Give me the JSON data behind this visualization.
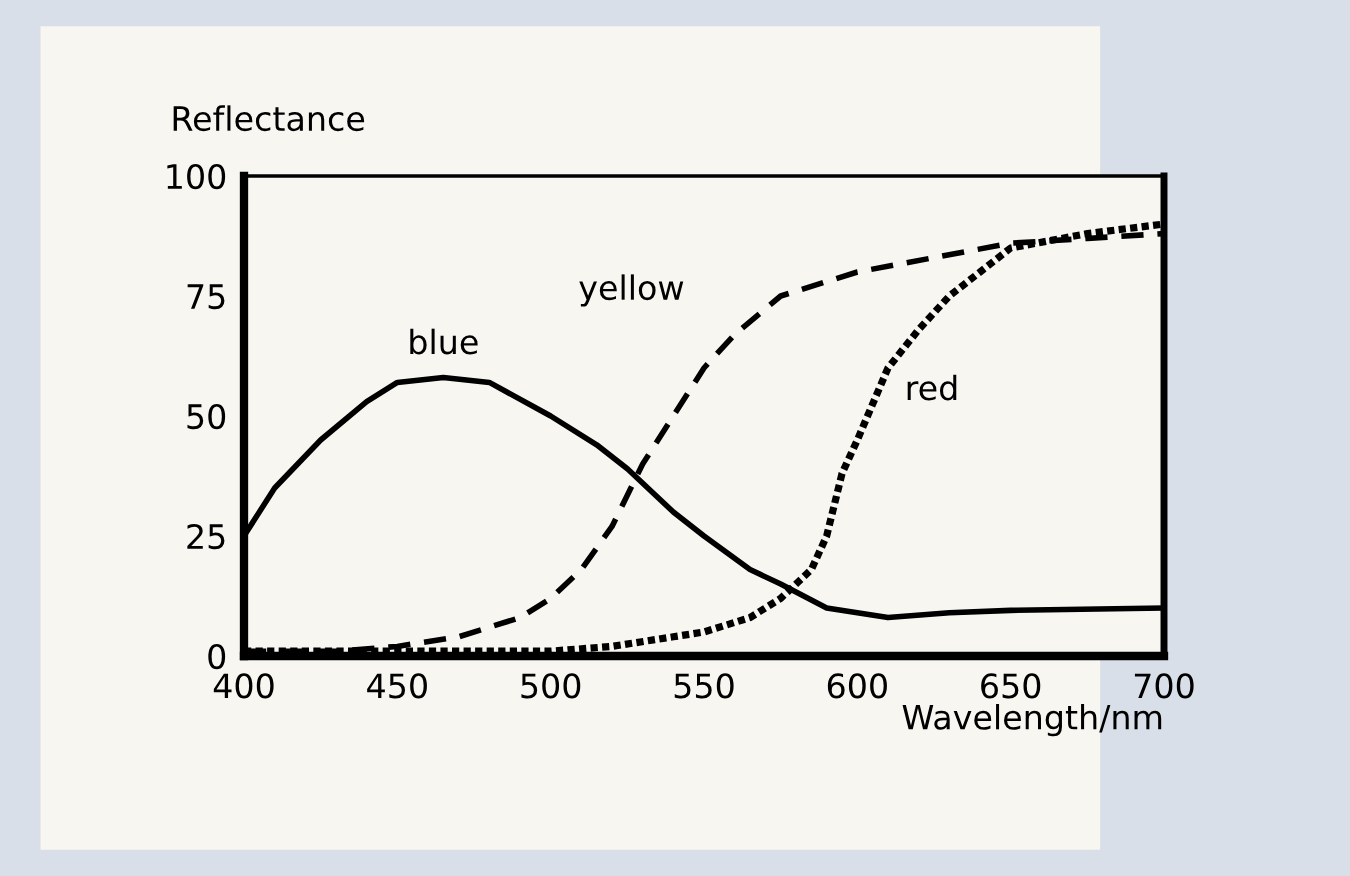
{
  "chart_data": {
    "type": "line",
    "ylabel": "Reflectance",
    "xlabel": "Wavelength/nm",
    "xlim": [
      400,
      700
    ],
    "ylim": [
      0,
      100
    ],
    "xticks": [
      400,
      450,
      500,
      550,
      600,
      650,
      700
    ],
    "yticks": [
      0,
      25,
      50,
      75,
      100
    ],
    "grid": false,
    "legend": false,
    "marker": "none",
    "series": [
      {
        "name": "blue",
        "color": "#000000",
        "line_style": "solid",
        "x": [
          400,
          410,
          425,
          440,
          450,
          465,
          480,
          500,
          515,
          525,
          540,
          550,
          565,
          575,
          590,
          610,
          630,
          650,
          700
        ],
        "values": [
          25,
          35,
          45,
          53,
          57,
          58,
          57,
          50,
          44,
          39,
          30,
          25,
          18,
          15,
          10,
          8,
          9,
          9.5,
          10
        ]
      },
      {
        "name": "yellow",
        "color": "#000000",
        "line_style": "dashed",
        "x": [
          400,
          430,
          450,
          470,
          490,
          500,
          510,
          520,
          530,
          540,
          550,
          560,
          575,
          590,
          600,
          625,
          650,
          675,
          700
        ],
        "values": [
          1,
          1,
          2,
          4,
          8,
          12,
          18,
          27,
          40,
          50,
          60,
          67,
          75,
          78,
          80,
          83,
          86,
          87,
          88
        ]
      },
      {
        "name": "red",
        "color": "#000000",
        "line_style": "dotted",
        "x": [
          400,
          450,
          500,
          520,
          540,
          550,
          565,
          575,
          585,
          590,
          595,
          600,
          610,
          620,
          630,
          650,
          675,
          700
        ],
        "values": [
          1,
          1,
          1,
          2,
          4,
          5,
          8,
          12,
          18,
          25,
          38,
          45,
          60,
          68,
          75,
          85,
          88,
          90
        ]
      }
    ]
  }
}
